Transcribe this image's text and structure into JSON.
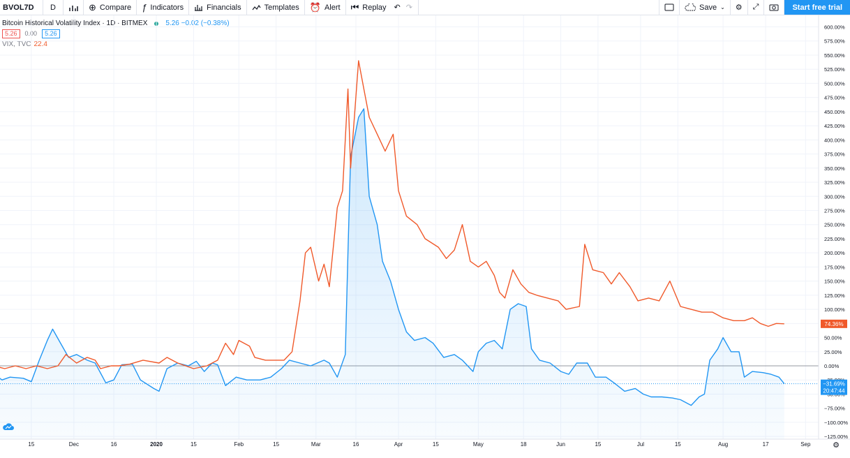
{
  "toolbar": {
    "symbol": "BVOL7D",
    "interval": "D",
    "compare": "Compare",
    "indicators": "Indicators",
    "financials": "Financials",
    "templates": "Templates",
    "alert": "Alert",
    "replay": "Replay",
    "save": "Save",
    "start_trial": "Start free trial"
  },
  "legend": {
    "title": "Bitcoin Historical Volatility Index · 1D · BITMEX",
    "value": "5.26  −0.02 (−0.38%)",
    "box1": "5.26",
    "box2": "0.00",
    "box3": "5.26",
    "vix_label": "VIX, TVC",
    "vix_value": "22.4"
  },
  "colors": {
    "bvol": "#2196f3",
    "vix": "#f0592a",
    "grid": "#f0f3fa",
    "axis_text": "#131722"
  },
  "chart_data": {
    "type": "line",
    "y_unit": "percent change",
    "ylim": [
      -125,
      600
    ],
    "yticks": [
      600,
      575,
      550,
      525,
      500,
      475,
      450,
      425,
      400,
      375,
      350,
      325,
      300,
      275,
      250,
      225,
      200,
      175,
      150,
      125,
      100,
      75,
      50,
      25,
      0,
      -25,
      -50,
      -75,
      -100,
      -125
    ],
    "ytick_labels": [
      "600.00%",
      "575.00%",
      "550.00%",
      "525.00%",
      "500.00%",
      "475.00%",
      "450.00%",
      "425.00%",
      "400.00%",
      "375.00%",
      "350.00%",
      "325.00%",
      "300.00%",
      "275.00%",
      "250.00%",
      "225.00%",
      "200.00%",
      "175.00%",
      "150.00%",
      "125.00%",
      "100.00%",
      "75.00%",
      "50.00%",
      "25.00%",
      "0.00%",
      "−25.00%",
      "−50.00%",
      "−75.00%",
      "−100.00%",
      "−125.00%"
    ],
    "xticks": [
      {
        "label": "15",
        "x": "2019-11-15"
      },
      {
        "label": "Dec",
        "x": "2019-12-01"
      },
      {
        "label": "16",
        "x": "2019-12-16"
      },
      {
        "label": "2020",
        "x": "2020-01-01",
        "bold": true
      },
      {
        "label": "15",
        "x": "2020-01-15"
      },
      {
        "label": "Feb",
        "x": "2020-02-01"
      },
      {
        "label": "15",
        "x": "2020-02-15"
      },
      {
        "label": "Mar",
        "x": "2020-03-01"
      },
      {
        "label": "16",
        "x": "2020-03-16"
      },
      {
        "label": "Apr",
        "x": "2020-04-01"
      },
      {
        "label": "15",
        "x": "2020-04-15"
      },
      {
        "label": "May",
        "x": "2020-05-01"
      },
      {
        "label": "18",
        "x": "2020-05-18"
      },
      {
        "label": "Jun",
        "x": "2020-06-01"
      },
      {
        "label": "15",
        "x": "2020-06-15"
      },
      {
        "label": "Jul",
        "x": "2020-07-01"
      },
      {
        "label": "15",
        "x": "2020-07-15"
      },
      {
        "label": "Aug",
        "x": "2020-08-01"
      },
      {
        "label": "17",
        "x": "2020-08-17"
      },
      {
        "label": "Sep",
        "x": "2020-09-01"
      }
    ],
    "series": [
      {
        "key": "bvol",
        "color": "#2196f3",
        "points": [
          [
            "2019-11-01",
            -15
          ],
          [
            "2019-11-04",
            -25
          ],
          [
            "2019-11-07",
            -20
          ],
          [
            "2019-11-12",
            -22
          ],
          [
            "2019-11-15",
            -28
          ],
          [
            "2019-11-18",
            10
          ],
          [
            "2019-11-21",
            45
          ],
          [
            "2019-11-23",
            65
          ],
          [
            "2019-11-26",
            40
          ],
          [
            "2019-11-29",
            15
          ],
          [
            "2019-12-02",
            20
          ],
          [
            "2019-12-06",
            10
          ],
          [
            "2019-12-09",
            5
          ],
          [
            "2019-12-13",
            -30
          ],
          [
            "2019-12-16",
            -25
          ],
          [
            "2019-12-19",
            2
          ],
          [
            "2019-12-23",
            3
          ],
          [
            "2019-12-26",
            -25
          ],
          [
            "2019-12-31",
            -40
          ],
          [
            "2020-01-02",
            -45
          ],
          [
            "2020-01-05",
            -5
          ],
          [
            "2020-01-09",
            5
          ],
          [
            "2020-01-13",
            0
          ],
          [
            "2020-01-16",
            8
          ],
          [
            "2020-01-19",
            -10
          ],
          [
            "2020-01-22",
            5
          ],
          [
            "2020-01-24",
            2
          ],
          [
            "2020-01-27",
            -35
          ],
          [
            "2020-01-31",
            -20
          ],
          [
            "2020-02-04",
            -25
          ],
          [
            "2020-02-09",
            -25
          ],
          [
            "2020-02-13",
            -20
          ],
          [
            "2020-02-17",
            -5
          ],
          [
            "2020-02-20",
            10
          ],
          [
            "2020-02-24",
            5
          ],
          [
            "2020-02-28",
            0
          ],
          [
            "2020-03-04",
            10
          ],
          [
            "2020-03-06",
            5
          ],
          [
            "2020-03-09",
            -20
          ],
          [
            "2020-03-12",
            20
          ],
          [
            "2020-03-13",
            200
          ],
          [
            "2020-03-14",
            370
          ],
          [
            "2020-03-17",
            440
          ],
          [
            "2020-03-19",
            455
          ],
          [
            "2020-03-21",
            300
          ],
          [
            "2020-03-24",
            250
          ],
          [
            "2020-03-26",
            185
          ],
          [
            "2020-03-29",
            150
          ],
          [
            "2020-04-01",
            100
          ],
          [
            "2020-04-04",
            60
          ],
          [
            "2020-04-07",
            45
          ],
          [
            "2020-04-11",
            50
          ],
          [
            "2020-04-14",
            40
          ],
          [
            "2020-04-18",
            15
          ],
          [
            "2020-04-22",
            20
          ],
          [
            "2020-04-25",
            10
          ],
          [
            "2020-04-29",
            -10
          ],
          [
            "2020-05-01",
            25
          ],
          [
            "2020-05-04",
            40
          ],
          [
            "2020-05-07",
            45
          ],
          [
            "2020-05-10",
            30
          ],
          [
            "2020-05-13",
            100
          ],
          [
            "2020-05-16",
            110
          ],
          [
            "2020-05-19",
            105
          ],
          [
            "2020-05-21",
            30
          ],
          [
            "2020-05-24",
            10
          ],
          [
            "2020-05-28",
            5
          ],
          [
            "2020-06-01",
            -10
          ],
          [
            "2020-06-04",
            -15
          ],
          [
            "2020-06-07",
            5
          ],
          [
            "2020-06-11",
            5
          ],
          [
            "2020-06-14",
            -20
          ],
          [
            "2020-06-18",
            -20
          ],
          [
            "2020-06-21",
            -30
          ],
          [
            "2020-06-25",
            -45
          ],
          [
            "2020-06-29",
            -40
          ],
          [
            "2020-07-02",
            -50
          ],
          [
            "2020-07-05",
            -55
          ],
          [
            "2020-07-09",
            -55
          ],
          [
            "2020-07-13",
            -57
          ],
          [
            "2020-07-16",
            -60
          ],
          [
            "2020-07-20",
            -70
          ],
          [
            "2020-07-23",
            -55
          ],
          [
            "2020-07-25",
            -50
          ],
          [
            "2020-07-27",
            10
          ],
          [
            "2020-07-30",
            30
          ],
          [
            "2020-08-01",
            50
          ],
          [
            "2020-08-04",
            25
          ],
          [
            "2020-08-07",
            25
          ],
          [
            "2020-08-09",
            -20
          ],
          [
            "2020-08-12",
            -10
          ],
          [
            "2020-08-16",
            -12
          ],
          [
            "2020-08-19",
            -15
          ],
          [
            "2020-08-22",
            -20
          ],
          [
            "2020-08-24",
            -31.69
          ]
        ]
      },
      {
        "key": "vix",
        "color": "#f0592a",
        "points": [
          [
            "2019-11-01",
            0
          ],
          [
            "2019-11-05",
            -5
          ],
          [
            "2019-11-09",
            0
          ],
          [
            "2019-11-13",
            -5
          ],
          [
            "2019-11-17",
            0
          ],
          [
            "2019-11-21",
            -5
          ],
          [
            "2019-11-25",
            0
          ],
          [
            "2019-11-28",
            20
          ],
          [
            "2019-12-02",
            5
          ],
          [
            "2019-12-06",
            15
          ],
          [
            "2019-12-09",
            10
          ],
          [
            "2019-12-11",
            -5
          ],
          [
            "2019-12-15",
            0
          ],
          [
            "2019-12-18",
            0
          ],
          [
            "2019-12-22",
            3
          ],
          [
            "2019-12-27",
            10
          ],
          [
            "2020-01-02",
            5
          ],
          [
            "2020-01-05",
            15
          ],
          [
            "2020-01-09",
            5
          ],
          [
            "2020-01-15",
            -5
          ],
          [
            "2020-01-20",
            0
          ],
          [
            "2020-01-24",
            10
          ],
          [
            "2020-01-27",
            40
          ],
          [
            "2020-01-30",
            20
          ],
          [
            "2020-02-01",
            45
          ],
          [
            "2020-02-05",
            35
          ],
          [
            "2020-02-07",
            15
          ],
          [
            "2020-02-11",
            10
          ],
          [
            "2020-02-15",
            10
          ],
          [
            "2020-02-18",
            10
          ],
          [
            "2020-02-21",
            25
          ],
          [
            "2020-02-24",
            115
          ],
          [
            "2020-02-26",
            200
          ],
          [
            "2020-02-28",
            210
          ],
          [
            "2020-03-02",
            150
          ],
          [
            "2020-03-04",
            180
          ],
          [
            "2020-03-06",
            140
          ],
          [
            "2020-03-09",
            280
          ],
          [
            "2020-03-11",
            310
          ],
          [
            "2020-03-13",
            490
          ],
          [
            "2020-03-14",
            350
          ],
          [
            "2020-03-17",
            540
          ],
          [
            "2020-03-19",
            490
          ],
          [
            "2020-03-21",
            440
          ],
          [
            "2020-03-24",
            410
          ],
          [
            "2020-03-27",
            380
          ],
          [
            "2020-03-30",
            410
          ],
          [
            "2020-04-01",
            310
          ],
          [
            "2020-04-04",
            265
          ],
          [
            "2020-04-08",
            250
          ],
          [
            "2020-04-11",
            225
          ],
          [
            "2020-04-16",
            210
          ],
          [
            "2020-04-19",
            190
          ],
          [
            "2020-04-22",
            205
          ],
          [
            "2020-04-25",
            250
          ],
          [
            "2020-04-28",
            185
          ],
          [
            "2020-05-01",
            175
          ],
          [
            "2020-05-04",
            185
          ],
          [
            "2020-05-07",
            160
          ],
          [
            "2020-05-09",
            130
          ],
          [
            "2020-05-11",
            120
          ],
          [
            "2020-05-14",
            170
          ],
          [
            "2020-05-17",
            145
          ],
          [
            "2020-05-20",
            130
          ],
          [
            "2020-05-23",
            125
          ],
          [
            "2020-05-27",
            120
          ],
          [
            "2020-05-31",
            115
          ],
          [
            "2020-06-03",
            100
          ],
          [
            "2020-06-08",
            105
          ],
          [
            "2020-06-10",
            215
          ],
          [
            "2020-06-13",
            170
          ],
          [
            "2020-06-17",
            165
          ],
          [
            "2020-06-20",
            145
          ],
          [
            "2020-06-23",
            165
          ],
          [
            "2020-06-27",
            140
          ],
          [
            "2020-06-30",
            115
          ],
          [
            "2020-07-04",
            120
          ],
          [
            "2020-07-08",
            115
          ],
          [
            "2020-07-12",
            150
          ],
          [
            "2020-07-16",
            105
          ],
          [
            "2020-07-20",
            100
          ],
          [
            "2020-07-24",
            95
          ],
          [
            "2020-07-28",
            95
          ],
          [
            "2020-08-01",
            85
          ],
          [
            "2020-08-05",
            80
          ],
          [
            "2020-08-09",
            80
          ],
          [
            "2020-08-12",
            85
          ],
          [
            "2020-08-15",
            75
          ],
          [
            "2020-08-18",
            70
          ],
          [
            "2020-08-21",
            75
          ],
          [
            "2020-08-24",
            74.36
          ]
        ]
      }
    ],
    "price_labels": [
      {
        "series": "vix",
        "text": "74.36%",
        "value": 74.36
      },
      {
        "series": "bvol",
        "text": "−31.69%",
        "value": -31.69
      },
      {
        "series": "bvol",
        "text": "20:47:44",
        "sub": true
      }
    ]
  }
}
